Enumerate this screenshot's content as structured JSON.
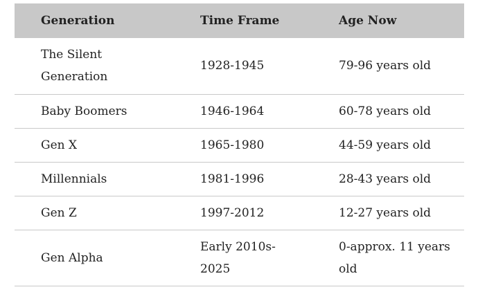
{
  "table": {
    "headers": [
      "Generation",
      "Time Frame",
      "Age Now"
    ],
    "rows": [
      {
        "generation": "The Silent Generation",
        "time_frame": "1928-1945",
        "age_now": "79-96 years old"
      },
      {
        "generation": "Baby Boomers",
        "time_frame": "1946-1964",
        "age_now": "60-78 years old"
      },
      {
        "generation": "Gen X",
        "time_frame": "1965-1980",
        "age_now": "44-59 years old"
      },
      {
        "generation": "Millennials",
        "time_frame": "1981-1996",
        "age_now": "28-43 years old"
      },
      {
        "generation": "Gen Z",
        "time_frame": "1997-2012",
        "age_now": "12-27 years old"
      },
      {
        "generation": "Gen Alpha",
        "time_frame": "Early 2010s-2025",
        "age_now": "0-approx. 11 years old"
      }
    ]
  },
  "colors": {
    "header_background": "#c8c8c8",
    "row_divider": "#c8c8c8",
    "text": "#222222"
  }
}
